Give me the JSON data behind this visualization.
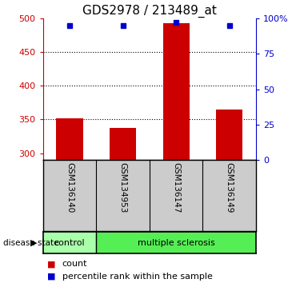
{
  "title": "GDS2978 / 213489_at",
  "samples": [
    "GSM136140",
    "GSM134953",
    "GSM136147",
    "GSM136149"
  ],
  "counts": [
    352,
    338,
    493,
    365
  ],
  "percentiles": [
    95,
    95,
    97,
    95
  ],
  "ylim_left": [
    290,
    500
  ],
  "ylim_right": [
    0,
    100
  ],
  "yticks_left": [
    300,
    350,
    400,
    450,
    500
  ],
  "yticks_right": [
    0,
    25,
    50,
    75,
    100
  ],
  "ytick_labels_right": [
    "0",
    "25",
    "50",
    "75",
    "100%"
  ],
  "bar_color": "#cc0000",
  "dot_color": "#0000cc",
  "bar_width": 0.5,
  "disease_state_labels": [
    "control",
    "multiple sclerosis"
  ],
  "control_color": "#aaffaa",
  "ms_color": "#55ee55",
  "label_bg_color": "#cccccc",
  "plot_bg_color": "#ffffff",
  "axis_color_left": "#cc0000",
  "axis_color_right": "#0000cc",
  "gridline_ticks": [
    350,
    400,
    450
  ],
  "figsize": [
    3.7,
    3.54
  ],
  "dpi": 100
}
